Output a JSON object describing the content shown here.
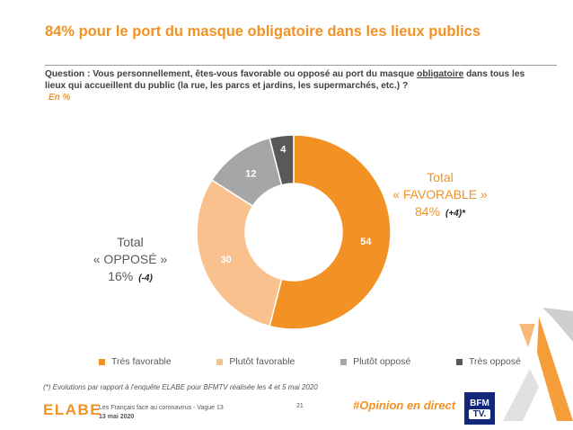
{
  "header": {
    "title": "84% pour le port du masque obligatoire dans les lieux publics"
  },
  "question": {
    "prefix": "Question : Vous personnellement, êtes-vous favorable ou opposé au port du masque ",
    "underlined": "obligatoire",
    "suffix": " dans tous les lieux qui accueillent du public (la rue, les parcs et jardins, les supermarchés, etc.) ?",
    "unit": "En %"
  },
  "totals": {
    "favorable_label_1": "Total",
    "favorable_label_2": "« FAVORABLE »",
    "favorable_value": "84%",
    "favorable_delta": "(+4)*",
    "oppose_label_1": "Total",
    "oppose_label_2": "« OPPOSÉ »",
    "oppose_value": "16%",
    "oppose_delta": "(-4)"
  },
  "chart_data": {
    "type": "pie",
    "donut": true,
    "categories": [
      "Très favorable",
      "Plutôt favorable",
      "Plutôt opposé",
      "Très opposé"
    ],
    "values": [
      54,
      30,
      12,
      4
    ],
    "colors": [
      "#f39224",
      "#f9c18e",
      "#a6a6a6",
      "#595959"
    ],
    "legend_position": "bottom"
  },
  "footer": {
    "footnote": "(*) Evolutions par rapport à l'enquête ELABE pour BFMTV réalisée les 4 et 5 mai 2020",
    "logo_text": "ELABE",
    "source_line_1": "Les Français face au coronavirus - Vague 13",
    "source_line_2": "13 mai 2020",
    "page_number": "21",
    "hashtag": "#Opinion en direct",
    "bfm_line_1": "BFM",
    "bfm_line_2": "TV."
  }
}
